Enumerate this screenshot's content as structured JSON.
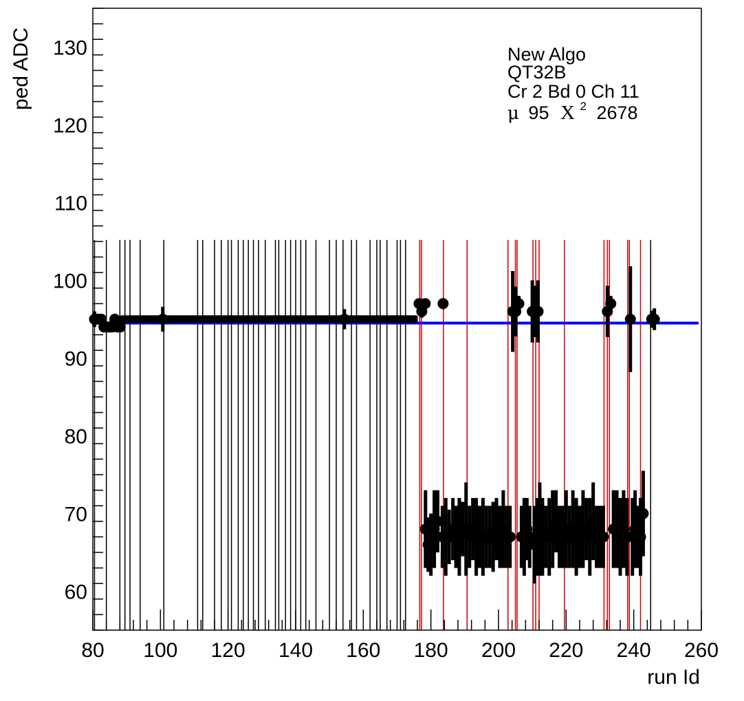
{
  "chart_data": {
    "type": "scatter",
    "title": "",
    "xlabel": "run Id",
    "ylabel": "ped ADC",
    "xlim": [
      80,
      260
    ],
    "ylim": [
      55,
      135
    ],
    "x_ticks": [
      80,
      100,
      120,
      140,
      160,
      180,
      200,
      220,
      240,
      260
    ],
    "y_ticks": [
      60,
      70,
      80,
      90,
      100,
      110,
      120,
      130
    ],
    "x_tick_labels": [
      "80",
      "100",
      "120",
      "140",
      "160",
      "180",
      "200",
      "220",
      "240",
      "260"
    ],
    "y_tick_labels": [
      "60",
      "70",
      "80",
      "90",
      "100",
      "110",
      "120",
      "130"
    ],
    "grid": false,
    "annotations": {
      "line1": "New Algo",
      "line2": "QT32B",
      "line3": "Cr 2 Bd 0 Ch 11",
      "mu_symbol": "μ",
      "mu_value": "95",
      "chi_symbol": "X",
      "chi_exponent": "2",
      "chi_value": "2678"
    },
    "fit_line": {
      "y": 94.5,
      "x_range": [
        82,
        260
      ],
      "color": "#0000ff"
    },
    "black_vlines_x": [
      80.5,
      84,
      88,
      89.5,
      91,
      94,
      101,
      111,
      112.5,
      116,
      118,
      120,
      121,
      123,
      124.5,
      126,
      127.5,
      129,
      131,
      134,
      135,
      137,
      138.5,
      140,
      141.5,
      143,
      146,
      150,
      152,
      154,
      156.5,
      158,
      162,
      164,
      165,
      167,
      170,
      171,
      172.5,
      245
    ],
    "red_vlines_x": [
      176.7,
      177.2,
      183.7,
      190.7,
      202.8,
      205,
      205.5,
      210.2,
      211,
      212,
      219.5,
      231.2,
      232.2,
      232.8,
      238.2,
      238.7,
      242
    ],
    "series": [
      {
        "name": "",
        "points": [
          {
            "x": 80.5,
            "y": 95,
            "err": 1
          },
          {
            "x": 81.5,
            "y": 95,
            "err": 0.6
          },
          {
            "x": 82.5,
            "y": 95,
            "err": 0.6
          },
          {
            "x": 83.3,
            "y": 94,
            "err": 0.6
          },
          {
            "x": 84.1,
            "y": 94,
            "err": 0.6
          },
          {
            "x": 84.9,
            "y": 94,
            "err": 0.6
          },
          {
            "x": 85.7,
            "y": 94,
            "err": 0.6
          },
          {
            "x": 86.5,
            "y": 95,
            "err": 0.6
          },
          {
            "x": 87.3,
            "y": 94,
            "err": 0.6
          },
          {
            "x": 88.1,
            "y": 94,
            "err": 0.6
          },
          {
            "x": 100.7,
            "y": 95,
            "err": 1.6
          },
          {
            "x": 154.4,
            "y": 95,
            "err": 1.3
          },
          {
            "x": 176.5,
            "y": 97,
            "err": 0.6
          },
          {
            "x": 177.3,
            "y": 96,
            "err": 0.8
          },
          {
            "x": 178.3,
            "y": 97,
            "err": 0.6
          },
          {
            "x": 183.6,
            "y": 97,
            "err": 0.7
          },
          {
            "x": 204.2,
            "y": 96,
            "err": 5.2
          },
          {
            "x": 205.1,
            "y": 96,
            "err": 3.2
          },
          {
            "x": 206.0,
            "y": 97,
            "err": 1
          },
          {
            "x": 210.0,
            "y": 96,
            "err": 4
          },
          {
            "x": 210.8,
            "y": 96,
            "err": 3.3
          },
          {
            "x": 211.7,
            "y": 96,
            "err": 4
          },
          {
            "x": 232.2,
            "y": 96,
            "err": 3.3
          },
          {
            "x": 233.2,
            "y": 97,
            "err": 1
          },
          {
            "x": 239.0,
            "y": 95,
            "err": 6.8
          },
          {
            "x": 245.3,
            "y": 95,
            "err": 1.1
          },
          {
            "x": 246.1,
            "y": 95,
            "err": 1.4
          },
          {
            "x": 178.4,
            "y": 68,
            "err": 5
          },
          {
            "x": 179.2,
            "y": 66,
            "err": 3.5
          },
          {
            "x": 180.0,
            "y": 66,
            "err": 4
          },
          {
            "x": 181.0,
            "y": 68,
            "err": 5
          },
          {
            "x": 182.0,
            "y": 69,
            "err": 4
          },
          {
            "x": 183.4,
            "y": 67,
            "err": 4
          },
          {
            "x": 184.4,
            "y": 67,
            "err": 5
          },
          {
            "x": 185.4,
            "y": 67,
            "err": 3.5
          },
          {
            "x": 186.5,
            "y": 68,
            "err": 4
          },
          {
            "x": 187.4,
            "y": 67,
            "err": 4
          },
          {
            "x": 188.4,
            "y": 67,
            "err": 5
          },
          {
            "x": 189.4,
            "y": 68,
            "err": 3.5
          },
          {
            "x": 190.4,
            "y": 68,
            "err": 6
          },
          {
            "x": 191.4,
            "y": 67,
            "err": 4
          },
          {
            "x": 192.4,
            "y": 68,
            "err": 4
          },
          {
            "x": 193.4,
            "y": 67,
            "err": 5
          },
          {
            "x": 194.4,
            "y": 67,
            "err": 4
          },
          {
            "x": 195.4,
            "y": 67,
            "err": 5
          },
          {
            "x": 196.4,
            "y": 67,
            "err": 4
          },
          {
            "x": 197.4,
            "y": 67,
            "err": 4
          },
          {
            "x": 198.4,
            "y": 67,
            "err": 4.5
          },
          {
            "x": 199.4,
            "y": 68,
            "err": 4
          },
          {
            "x": 200.4,
            "y": 67,
            "err": 4
          },
          {
            "x": 201.4,
            "y": 68,
            "err": 5
          },
          {
            "x": 202.4,
            "y": 67,
            "err": 4
          },
          {
            "x": 203.4,
            "y": 67,
            "err": 4
          },
          {
            "x": 206.8,
            "y": 67,
            "err": 4
          },
          {
            "x": 207.6,
            "y": 67,
            "err": 5
          },
          {
            "x": 208.4,
            "y": 68,
            "err": 4
          },
          {
            "x": 209.2,
            "y": 67,
            "err": 4
          },
          {
            "x": 210.6,
            "y": 66,
            "err": 5
          },
          {
            "x": 211.4,
            "y": 67,
            "err": 5
          },
          {
            "x": 212.2,
            "y": 68,
            "err": 6
          },
          {
            "x": 213.0,
            "y": 67,
            "err": 5
          },
          {
            "x": 214.0,
            "y": 67,
            "err": 4
          },
          {
            "x": 215.0,
            "y": 67,
            "err": 5
          },
          {
            "x": 216.0,
            "y": 68,
            "err": 5
          },
          {
            "x": 217.0,
            "y": 69,
            "err": 4
          },
          {
            "x": 218.0,
            "y": 67,
            "err": 4
          },
          {
            "x": 219.0,
            "y": 67,
            "err": 4
          },
          {
            "x": 220.0,
            "y": 68,
            "err": 5
          },
          {
            "x": 221.0,
            "y": 67,
            "err": 4
          },
          {
            "x": 222.0,
            "y": 68,
            "err": 5
          },
          {
            "x": 223.0,
            "y": 67,
            "err": 5
          },
          {
            "x": 224.0,
            "y": 67,
            "err": 4
          },
          {
            "x": 225.0,
            "y": 68,
            "err": 5
          },
          {
            "x": 226.0,
            "y": 68,
            "err": 4
          },
          {
            "x": 227.0,
            "y": 67,
            "err": 5
          },
          {
            "x": 228.0,
            "y": 69,
            "err": 5
          },
          {
            "x": 229.0,
            "y": 67,
            "err": 4
          },
          {
            "x": 230.0,
            "y": 67,
            "err": 4
          },
          {
            "x": 231.0,
            "y": 67,
            "err": 4
          },
          {
            "x": 234.0,
            "y": 68,
            "err": 5
          },
          {
            "x": 235.0,
            "y": 68,
            "err": 5
          },
          {
            "x": 236.0,
            "y": 67,
            "err": 5
          },
          {
            "x": 237.0,
            "y": 68,
            "err": 5
          },
          {
            "x": 238.0,
            "y": 67,
            "err": 5
          },
          {
            "x": 239.6,
            "y": 67,
            "err": 5
          },
          {
            "x": 240.4,
            "y": 68,
            "err": 5
          },
          {
            "x": 241.2,
            "y": 67,
            "err": 4
          },
          {
            "x": 242.0,
            "y": 67,
            "err": 5
          },
          {
            "x": 242.8,
            "y": 70,
            "err": 5.5
          }
        ]
      }
    ],
    "colors": {
      "points": "#000000",
      "fit": "#0000ff",
      "black_lines": "#000000",
      "red_lines": "#cc0000"
    },
    "legend": "none"
  }
}
